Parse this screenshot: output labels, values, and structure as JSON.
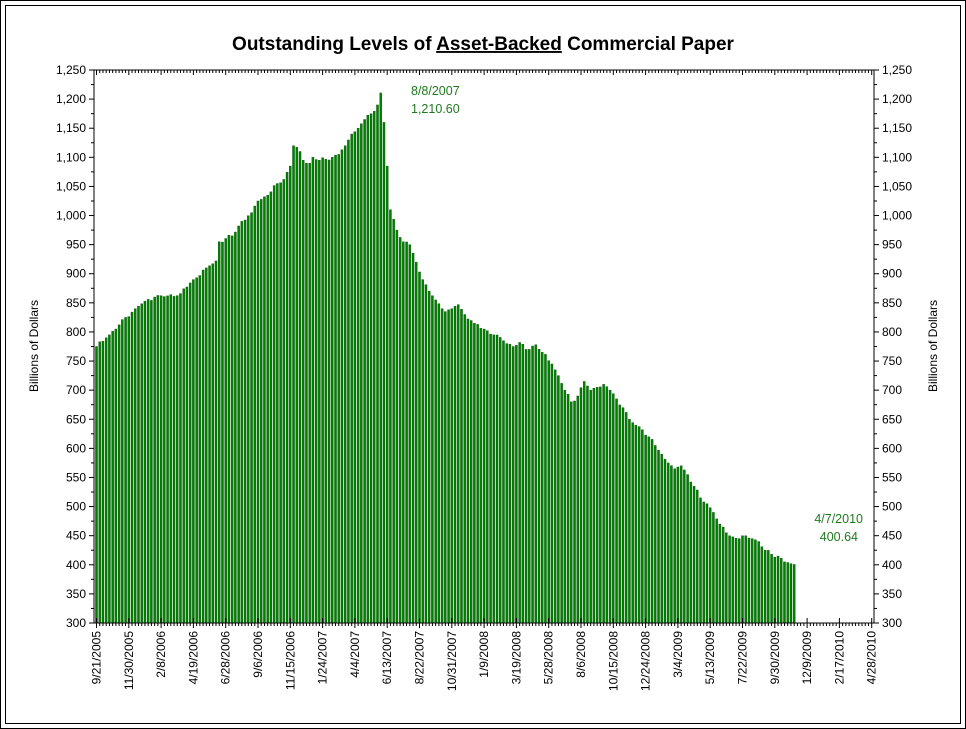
{
  "chart_data": {
    "type": "bar",
    "title_prefix": "Outstanding Levels of ",
    "title_underlined": "Asset-Backed",
    "title_suffix": " Commercial Paper",
    "ylabel_left": "Billions of Dollars",
    "ylabel_right": "Billions of Dollars",
    "ylim": [
      300,
      1250
    ],
    "ytick_step": 50,
    "ytick_labels": [
      "300",
      "350",
      "400",
      "450",
      "500",
      "550",
      "600",
      "650",
      "700",
      "750",
      "800",
      "850",
      "900",
      "950",
      "1,000",
      "1,050",
      "1,100",
      "1,150",
      "1,200",
      "1,250"
    ],
    "xtick_labels": [
      "9/21/2005",
      "11/30/2005",
      "2/8/2006",
      "4/19/2006",
      "6/28/2006",
      "9/6/2006",
      "11/15/2006",
      "1/24/2007",
      "4/4/2007",
      "6/13/2007",
      "8/22/2007",
      "10/31/2007",
      "1/9/2008",
      "3/19/2008",
      "5/28/2008",
      "8/6/2008",
      "10/15/2008",
      "12/24/2008",
      "3/4/2009",
      "5/13/2009",
      "7/22/2009",
      "9/30/2009",
      "12/9/2009",
      "2/17/2010",
      "4/28/2010"
    ],
    "weeks_between_ticks": 10,
    "bar_color": "#008000",
    "grid": false,
    "annotations": [
      {
        "date": "8/8/2007",
        "value": "1,210.60"
      },
      {
        "date": "4/7/2010",
        "value": "400.64"
      }
    ],
    "keypoints": [
      [
        0,
        775
      ],
      [
        3,
        790
      ],
      [
        6,
        805
      ],
      [
        9,
        825
      ],
      [
        12,
        840
      ],
      [
        15,
        853
      ],
      [
        18,
        860
      ],
      [
        22,
        862
      ],
      [
        26,
        866
      ],
      [
        30,
        890
      ],
      [
        34,
        910
      ],
      [
        37,
        922
      ],
      [
        38,
        955
      ],
      [
        42,
        965
      ],
      [
        45,
        990
      ],
      [
        48,
        1005
      ],
      [
        50,
        1025
      ],
      [
        53,
        1035
      ],
      [
        56,
        1055
      ],
      [
        58,
        1062
      ],
      [
        60,
        1085
      ],
      [
        61,
        1120
      ],
      [
        63,
        1110
      ],
      [
        64,
        1095
      ],
      [
        66,
        1090
      ],
      [
        67,
        1100
      ],
      [
        69,
        1095
      ],
      [
        73,
        1100
      ],
      [
        75,
        1105
      ],
      [
        77,
        1120
      ],
      [
        79,
        1140
      ],
      [
        81,
        1150
      ],
      [
        83,
        1165
      ],
      [
        85,
        1175
      ],
      [
        87,
        1190
      ],
      [
        88,
        1210.6
      ],
      [
        89,
        1160
      ],
      [
        90,
        1085
      ],
      [
        91,
        1010
      ],
      [
        93,
        975
      ],
      [
        95,
        955
      ],
      [
        97,
        950
      ],
      [
        99,
        920
      ],
      [
        101,
        890
      ],
      [
        103,
        870
      ],
      [
        105,
        855
      ],
      [
        107,
        840
      ],
      [
        108,
        835
      ],
      [
        110,
        840
      ],
      [
        112,
        847
      ],
      [
        114,
        830
      ],
      [
        117,
        815
      ],
      [
        120,
        805
      ],
      [
        123,
        795
      ],
      [
        126,
        785
      ],
      [
        129,
        775
      ],
      [
        131,
        782
      ],
      [
        133,
        770
      ],
      [
        136,
        778
      ],
      [
        138,
        765
      ],
      [
        141,
        745
      ],
      [
        143,
        725
      ],
      [
        145,
        700
      ],
      [
        147,
        680
      ],
      [
        149,
        690
      ],
      [
        151,
        715
      ],
      [
        153,
        700
      ],
      [
        155,
        705
      ],
      [
        157,
        710
      ],
      [
        159,
        700
      ],
      [
        161,
        685
      ],
      [
        163,
        670
      ],
      [
        165,
        650
      ],
      [
        167,
        640
      ],
      [
        169,
        632
      ],
      [
        171,
        620
      ],
      [
        173,
        605
      ],
      [
        175,
        590
      ],
      [
        177,
        575
      ],
      [
        179,
        565
      ],
      [
        181,
        570
      ],
      [
        183,
        555
      ],
      [
        185,
        535
      ],
      [
        187,
        515
      ],
      [
        189,
        505
      ],
      [
        191,
        490
      ],
      [
        193,
        470
      ],
      [
        195,
        455
      ],
      [
        197,
        448
      ],
      [
        199,
        445
      ],
      [
        201,
        450
      ],
      [
        203,
        445
      ],
      [
        205,
        440
      ],
      [
        207,
        425
      ],
      [
        209,
        418
      ],
      [
        211,
        415
      ],
      [
        213,
        405
      ],
      [
        215,
        402
      ],
      [
        216,
        400.64
      ]
    ]
  }
}
